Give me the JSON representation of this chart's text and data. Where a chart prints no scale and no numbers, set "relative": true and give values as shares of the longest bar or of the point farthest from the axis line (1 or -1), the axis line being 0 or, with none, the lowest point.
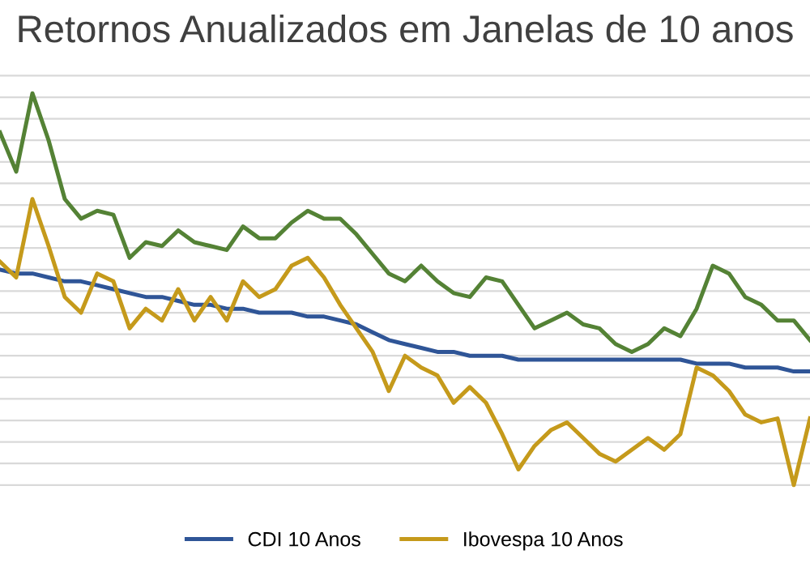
{
  "chart_data": {
    "type": "line",
    "title": "Retornos Anualizados em Janelas de 10 anos",
    "relative": true,
    "grid": "y",
    "legend": "bottom",
    "line_style": "solid",
    "marker": "none",
    "categories": [
      null,
      null,
      null,
      null,
      null,
      null,
      null,
      null,
      null,
      null,
      null,
      null,
      null,
      null,
      null,
      null,
      null,
      null,
      null,
      null,
      null,
      null,
      null,
      null,
      null,
      null,
      null,
      null,
      null,
      null,
      null,
      null,
      null,
      null,
      null,
      null,
      null,
      null,
      null,
      null,
      null,
      null,
      null,
      null,
      null,
      null,
      null,
      null,
      null,
      null,
      null
    ],
    "series": [
      {
        "name": "CDI 10 Anos",
        "color": "#2f5597",
        "values": [
          0.55,
          0.54,
          0.54,
          0.53,
          0.52,
          0.52,
          0.51,
          0.5,
          0.49,
          0.48,
          0.48,
          0.47,
          0.46,
          0.46,
          0.45,
          0.45,
          0.44,
          0.44,
          0.44,
          0.43,
          0.43,
          0.42,
          0.41,
          0.39,
          0.37,
          0.36,
          0.35,
          0.34,
          0.34,
          0.33,
          0.33,
          0.33,
          0.32,
          0.32,
          0.32,
          0.32,
          0.32,
          0.32,
          0.32,
          0.32,
          0.32,
          0.32,
          0.32,
          0.31,
          0.31,
          0.31,
          0.3,
          0.3,
          0.3,
          0.29,
          0.29
        ]
      },
      {
        "name": "Ibovespa 10 Anos",
        "color": "#c59a1b",
        "values": [
          0.57,
          0.53,
          0.73,
          0.61,
          0.48,
          0.44,
          0.54,
          0.52,
          0.4,
          0.45,
          0.42,
          0.5,
          0.42,
          0.48,
          0.42,
          0.52,
          0.48,
          0.5,
          0.56,
          0.58,
          0.53,
          0.46,
          0.4,
          0.34,
          0.24,
          0.33,
          0.3,
          0.28,
          0.21,
          0.25,
          0.21,
          0.13,
          0.04,
          0.1,
          0.14,
          0.16,
          0.12,
          0.08,
          0.06,
          0.09,
          0.12,
          0.09,
          0.13,
          0.3,
          0.28,
          0.24,
          0.18,
          0.16,
          0.17,
          0.0,
          0.17
        ]
      },
      {
        "color": "#548235",
        "values": [
          0.9,
          0.8,
          1.0,
          0.88,
          0.73,
          0.68,
          0.7,
          0.69,
          0.58,
          0.62,
          0.61,
          0.65,
          0.62,
          0.61,
          0.6,
          0.66,
          0.63,
          0.63,
          0.67,
          0.7,
          0.68,
          0.68,
          0.64,
          0.59,
          0.54,
          0.52,
          0.56,
          0.52,
          0.49,
          0.48,
          0.53,
          0.52,
          0.46,
          0.4,
          0.42,
          0.44,
          0.41,
          0.4,
          0.36,
          0.34,
          0.36,
          0.4,
          0.38,
          0.45,
          0.56,
          0.54,
          0.48,
          0.46,
          0.42,
          0.42,
          0.37
        ]
      }
    ]
  }
}
